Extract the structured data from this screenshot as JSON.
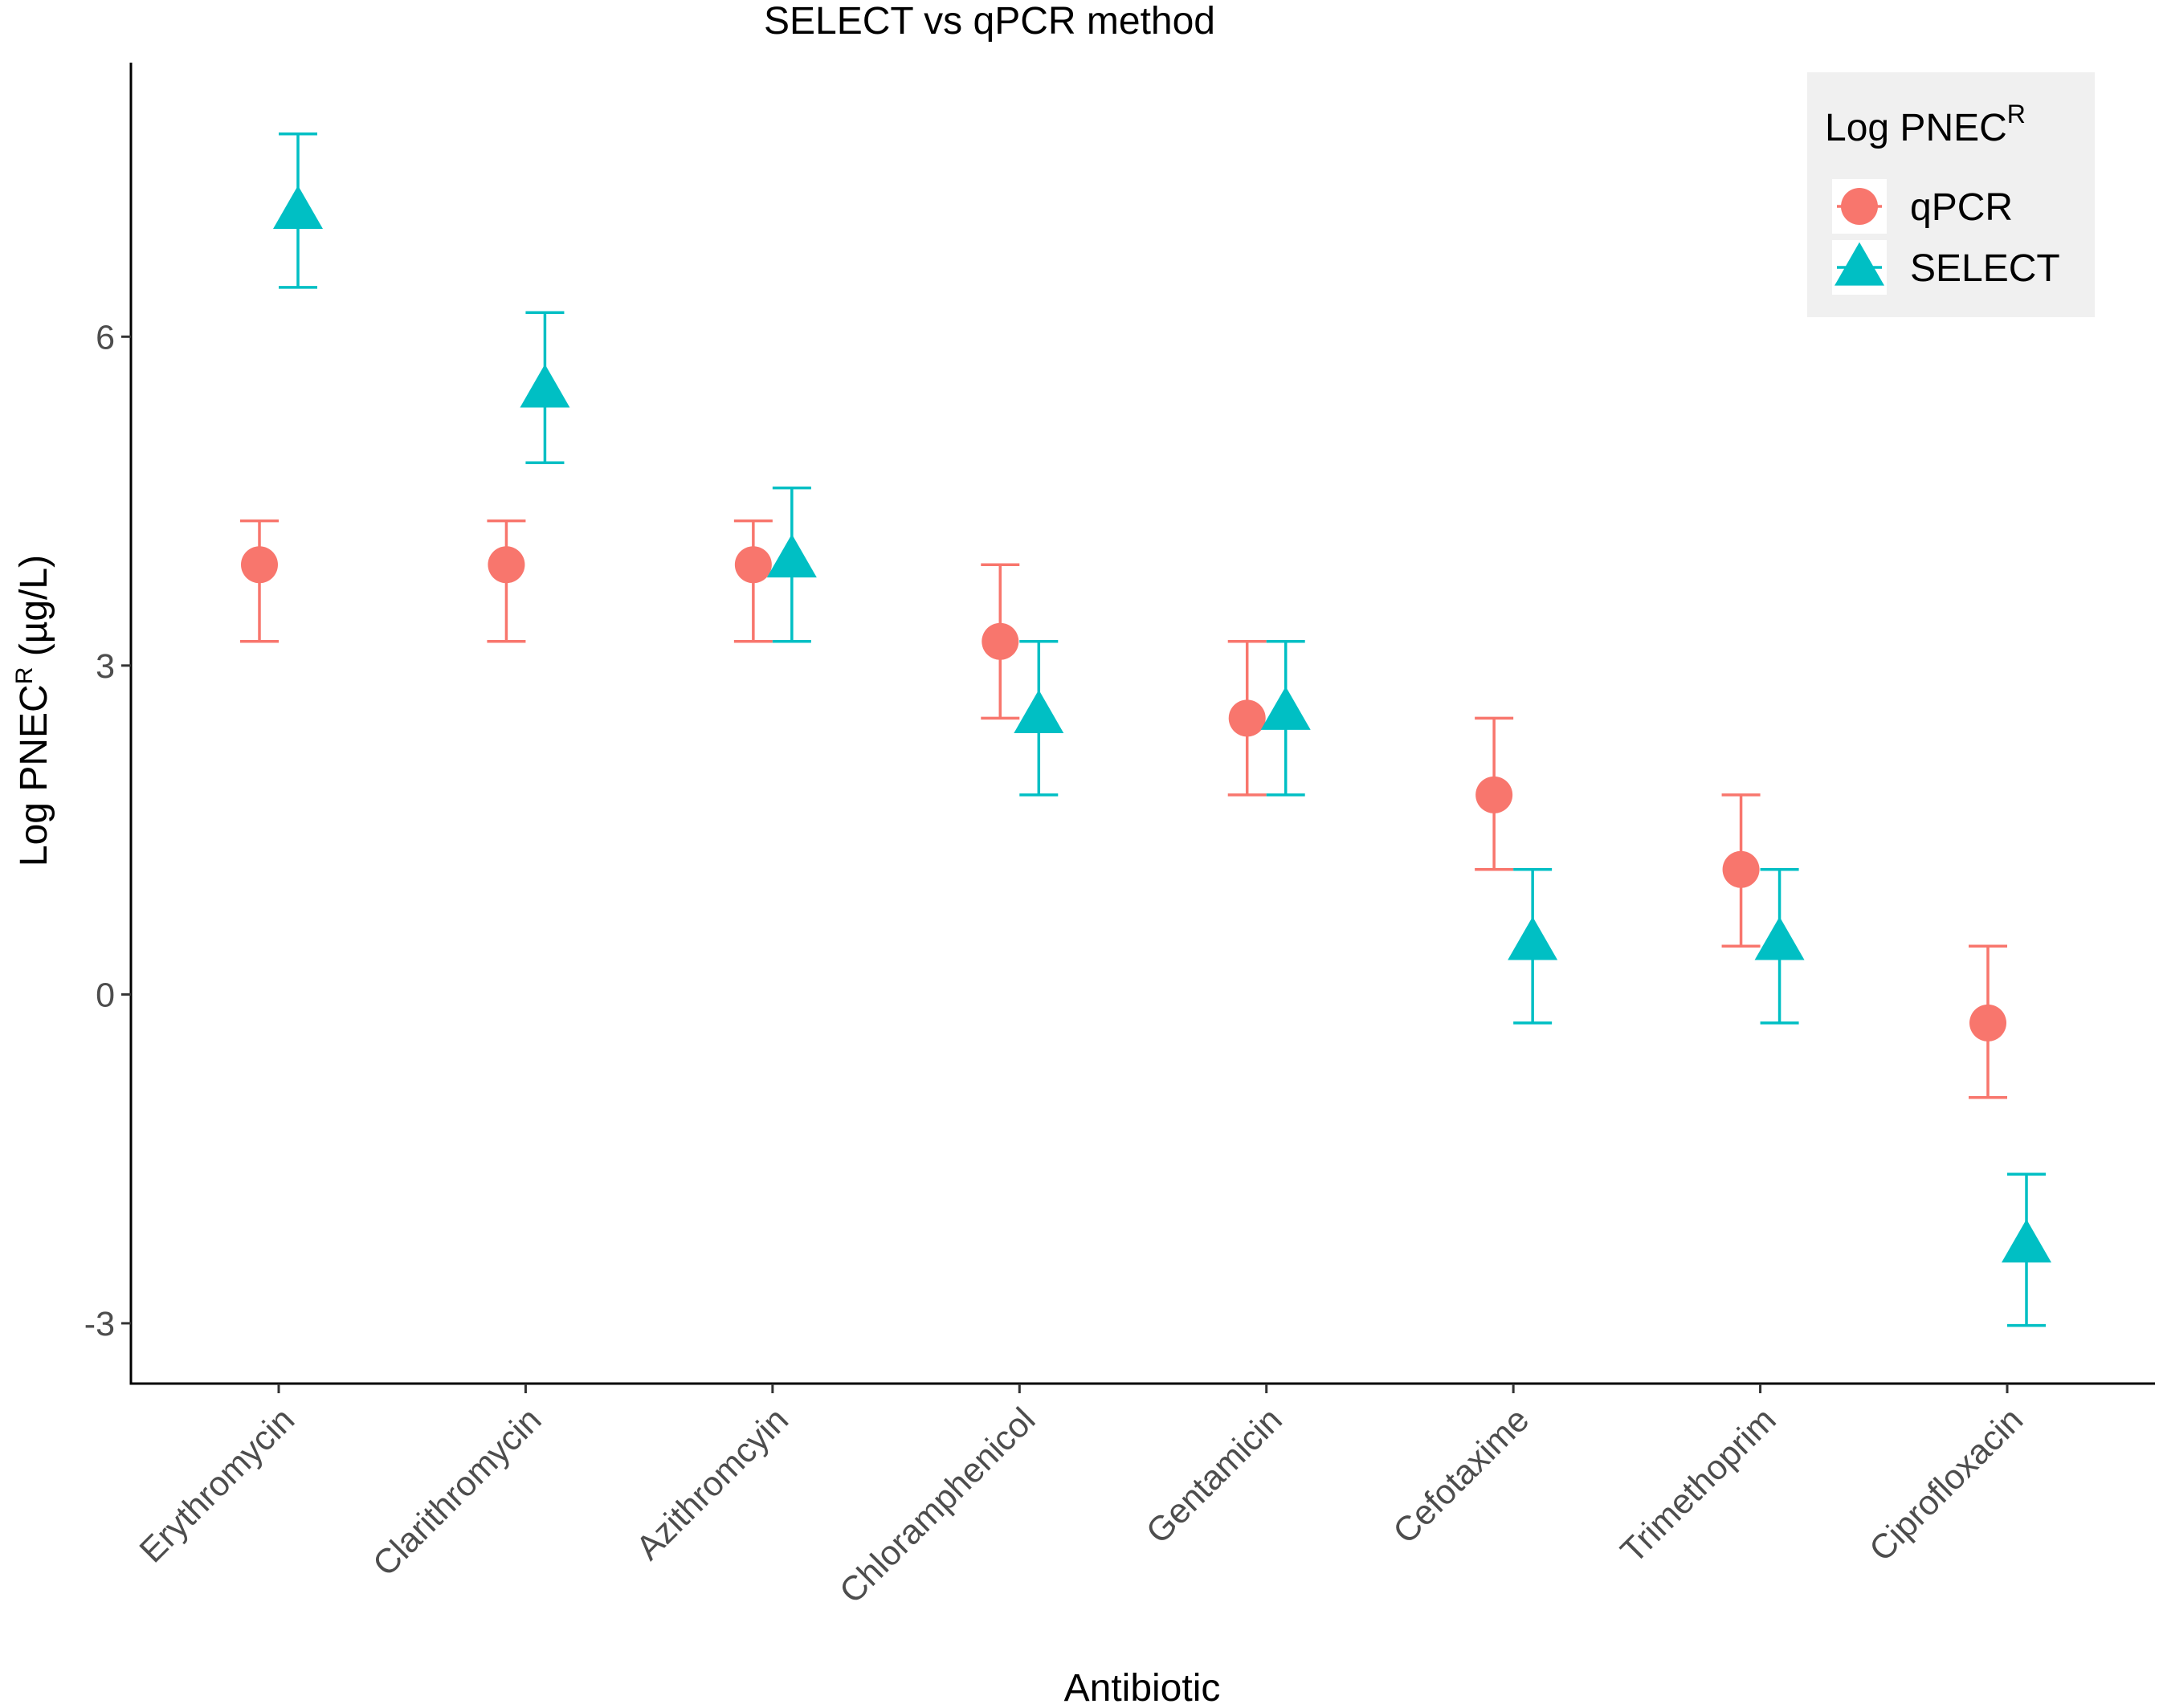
{
  "chart_data": {
    "type": "scatter",
    "title": "SELECT vs qPCR method",
    "xlabel": "Antibiotic",
    "ylabel": "Log PNEC",
    "ylabel_superscript": "R",
    "ylabel_units": "(µg/L)",
    "ylim": [
      -3.55,
      8.5
    ],
    "yticks": [
      -3,
      0,
      3,
      6
    ],
    "ytick_labels": [
      "-3",
      "0",
      "3",
      "6"
    ],
    "categories": [
      "Erythromycin",
      "Clarithromycin",
      "Azithromcyin",
      "Chloramphenicol",
      "Gentamicin",
      "Cefotaxime",
      "Trimethoprim",
      "Ciprofloxacin"
    ],
    "legend": {
      "title": "Log PNEC",
      "title_superscript": "R",
      "position": "top-right"
    },
    "series": [
      {
        "name": "qPCR",
        "marker": "circle",
        "color": "#F8766D",
        "values": [
          3.92,
          3.92,
          3.92,
          3.22,
          2.52,
          1.82,
          1.14,
          -0.26
        ],
        "lower": [
          3.22,
          3.22,
          3.22,
          2.52,
          1.82,
          1.14,
          0.44,
          -0.94
        ],
        "upper": [
          4.32,
          4.32,
          4.32,
          3.92,
          3.22,
          2.52,
          1.82,
          0.44
        ]
      },
      {
        "name": "SELECT",
        "marker": "triangle",
        "color": "#00BFC4",
        "values": [
          7.15,
          5.52,
          3.97,
          2.55,
          2.58,
          0.48,
          0.48,
          -2.28
        ],
        "lower": [
          6.45,
          4.85,
          3.22,
          1.82,
          1.82,
          -0.26,
          -0.26,
          -3.02
        ],
        "upper": [
          7.85,
          6.22,
          4.62,
          3.22,
          3.22,
          1.14,
          1.14,
          -1.64
        ]
      }
    ]
  }
}
